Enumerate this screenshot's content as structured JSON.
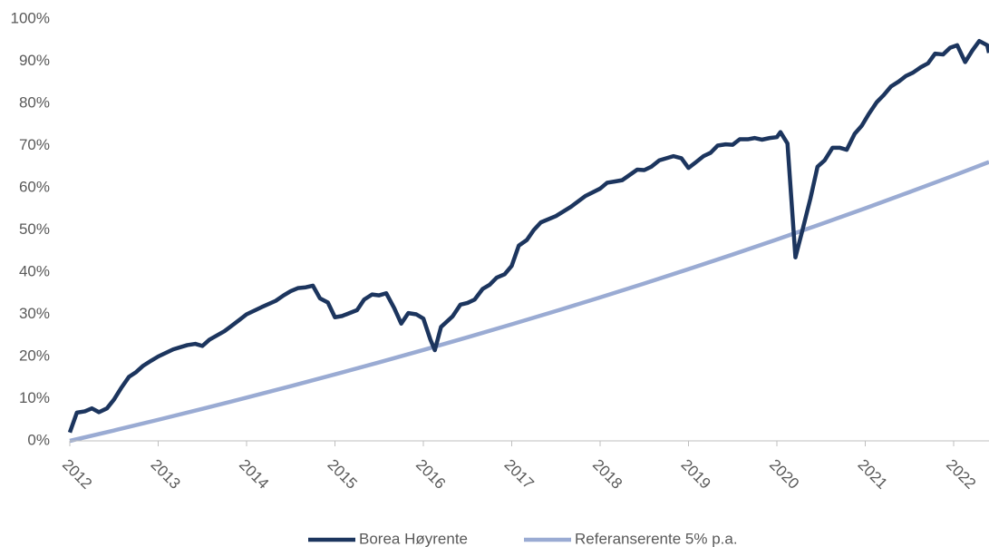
{
  "chart_data": {
    "type": "line",
    "xlim": [
      2012,
      2022.4
    ],
    "xticks": [
      2012,
      2013,
      2014,
      2015,
      2016,
      2017,
      2018,
      2019,
      2020,
      2021,
      2022
    ],
    "ylim": [
      0,
      100
    ],
    "yticks": [
      {
        "value": 0,
        "label": "0%"
      },
      {
        "value": 10,
        "label": "10%"
      },
      {
        "value": 20,
        "label": "20%"
      },
      {
        "value": 30,
        "label": "30%"
      },
      {
        "value": 40,
        "label": "40%"
      },
      {
        "value": 50,
        "label": "50%"
      },
      {
        "value": 60,
        "label": "60%"
      },
      {
        "value": 70,
        "label": "70%"
      },
      {
        "value": 80,
        "label": "80%"
      },
      {
        "value": 90,
        "label": "90%"
      },
      {
        "value": 100,
        "label": "100%"
      }
    ],
    "grid": false,
    "legend": "bottom",
    "series": [
      {
        "name": "Borea Høyrente",
        "color": "#1c355e",
        "x": [
          2012.0,
          2012.08,
          2012.17,
          2012.25,
          2012.33,
          2012.42,
          2012.5,
          2012.58,
          2012.67,
          2012.75,
          2012.83,
          2012.92,
          2013.0,
          2013.17,
          2013.33,
          2013.42,
          2013.5,
          2013.58,
          2013.75,
          2013.92,
          2014.0,
          2014.17,
          2014.33,
          2014.42,
          2014.5,
          2014.58,
          2014.67,
          2014.75,
          2014.83,
          2014.92,
          2015.0,
          2015.08,
          2015.25,
          2015.33,
          2015.42,
          2015.5,
          2015.58,
          2015.67,
          2015.75,
          2015.83,
          2015.92,
          2016.0,
          2016.08,
          2016.13,
          2016.2,
          2016.33,
          2016.42,
          2016.5,
          2016.58,
          2016.67,
          2016.75,
          2016.83,
          2016.92,
          2017.0,
          2017.08,
          2017.17,
          2017.25,
          2017.33,
          2017.5,
          2017.67,
          2017.83,
          2018.0,
          2018.08,
          2018.17,
          2018.25,
          2018.42,
          2018.5,
          2018.58,
          2018.67,
          2018.83,
          2018.92,
          2019.0,
          2019.08,
          2019.17,
          2019.25,
          2019.33,
          2019.42,
          2019.5,
          2019.58,
          2019.67,
          2019.75,
          2019.83,
          2019.92,
          2020.0,
          2020.04,
          2020.12,
          2020.21,
          2020.29,
          2020.38,
          2020.46,
          2020.54,
          2020.63,
          2020.71,
          2020.79,
          2020.88,
          2020.96,
          2021.04,
          2021.13,
          2021.21,
          2021.29,
          2021.38,
          2021.46,
          2021.54,
          2021.63,
          2021.71,
          2021.79,
          2021.88,
          2021.96,
          2022.04,
          2022.13,
          2022.21,
          2022.29,
          2022.38,
          2022.4
        ],
        "values": [
          2,
          6.7,
          7,
          7.7,
          6.8,
          7.7,
          9.8,
          12.5,
          15.2,
          16.3,
          17.8,
          19,
          20,
          21.7,
          22.7,
          23,
          22.5,
          24,
          26,
          28.7,
          30,
          31.7,
          33.2,
          34.5,
          35.5,
          36.2,
          36.4,
          36.8,
          33.8,
          32.8,
          29.3,
          29.6,
          31,
          33.5,
          34.7,
          34.5,
          35,
          31.5,
          27.8,
          30.3,
          30,
          29,
          24,
          21.5,
          27,
          29.5,
          32.3,
          32.7,
          33.5,
          36,
          37,
          38.7,
          39.5,
          41.5,
          46.3,
          47.6,
          50,
          51.8,
          53.3,
          55.5,
          58,
          59.8,
          61.2,
          61.5,
          61.8,
          64.3,
          64.2,
          65,
          66.5,
          67.5,
          67,
          64.7,
          66,
          67.5,
          68.3,
          70,
          70.3,
          70.2,
          71.5,
          71.5,
          71.8,
          71.4,
          71.8,
          72,
          73.2,
          70.5,
          43.5,
          50,
          57.5,
          65,
          66.5,
          69.5,
          69.5,
          69,
          72.8,
          74.7,
          77.5,
          80.3,
          82,
          84,
          85.2,
          86.5,
          87.3,
          88.6,
          89.5,
          91.8,
          91.6,
          93.2,
          93.8,
          89.8,
          92.5,
          94.8,
          93.8,
          92
        ]
      },
      {
        "name": "Referanserente 5% p.a.",
        "color": "#9aabd3",
        "x": [
          2012,
          2012.5,
          2013,
          2013.5,
          2014,
          2014.5,
          2015,
          2015.5,
          2016,
          2016.5,
          2017,
          2017.5,
          2018,
          2018.5,
          2019,
          2019.5,
          2020,
          2020.5,
          2021,
          2021.5,
          2022,
          2022.4
        ],
        "values": [
          0,
          2.47,
          5,
          7.59,
          10.25,
          12.97,
          15.76,
          18.62,
          21.55,
          24.56,
          27.63,
          30.78,
          34.01,
          37.31,
          40.71,
          44.18,
          47.75,
          51.4,
          55.13,
          58.97,
          62.89,
          66.1
        ]
      }
    ]
  }
}
